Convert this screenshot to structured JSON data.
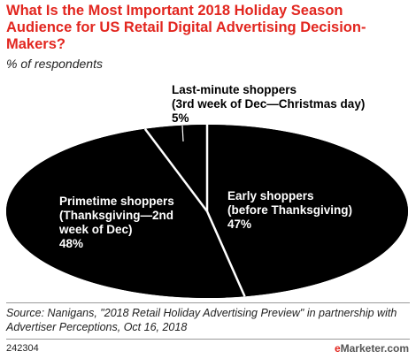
{
  "header": {
    "title": "What Is the Most Important 2018 Holiday Season Audience for US Retail Digital Advertising Decision-Makers?",
    "subtitle": "% of respondents"
  },
  "chart_data": {
    "type": "pie",
    "slices": [
      {
        "name": "Early shoppers",
        "label_lines": [
          "Early shoppers",
          "(before Thanksgiving)"
        ],
        "value": 47,
        "value_label": "47%"
      },
      {
        "name": "Primetime shoppers",
        "label_lines": [
          "Primetime shoppers",
          "(Thanksgiving—2nd",
          "week of Dec)"
        ],
        "value": 48,
        "value_label": "48%"
      },
      {
        "name": "Last-minute shoppers",
        "label_lines": [
          "Last-minute shoppers",
          "(3rd week of Dec—Christmas day)"
        ],
        "value": 5,
        "value_label": "5%"
      }
    ],
    "colors": {
      "fill": "#000000",
      "separator": "#ffffff",
      "label": "#ffffff",
      "outside_label": "#000000"
    }
  },
  "footer": {
    "source": "Source: Nanigans, \"2018 Retail Holiday Advertising Preview\" in partnership with Advertiser Perceptions, Oct 16, 2018",
    "code": "242304",
    "brand_prefix": "e",
    "brand_rest": "Marketer.com"
  }
}
